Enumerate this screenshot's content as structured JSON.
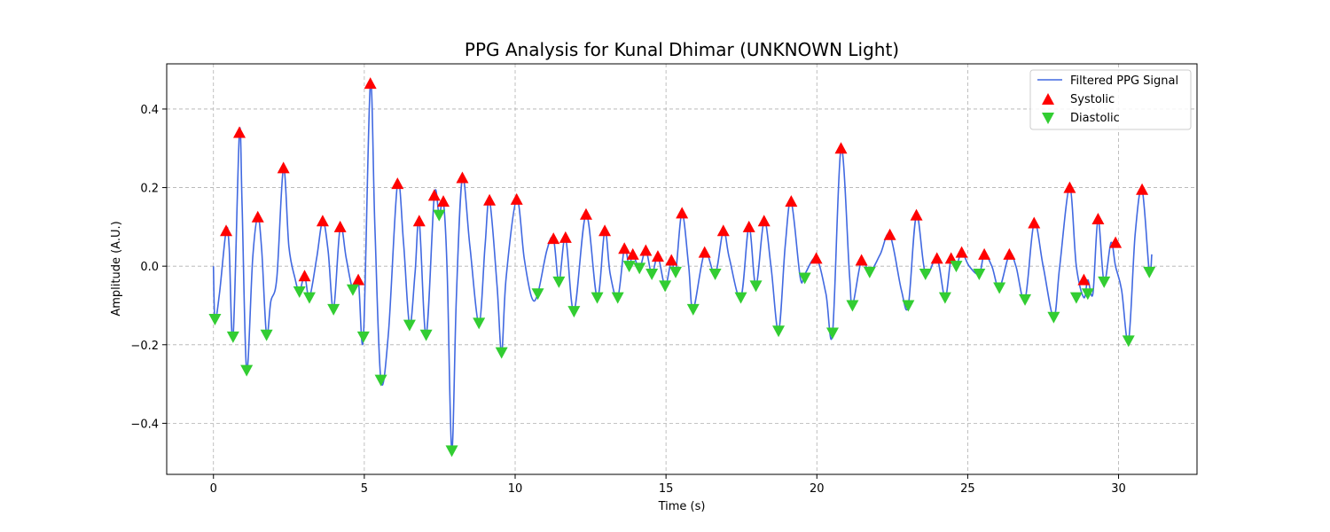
{
  "chart_data": {
    "type": "line",
    "title": "PPG Analysis for Kunal Dhimar (UNKNOWN Light)",
    "xlabel": "Time (s)",
    "ylabel": "Amplitude (A.U.)",
    "xlim": [
      -1.55,
      32.6
    ],
    "ylim": [
      -0.53,
      0.515
    ],
    "x_ticks": [
      0,
      5,
      10,
      15,
      20,
      25,
      30
    ],
    "y_ticks": [
      -0.4,
      -0.2,
      0.0,
      0.2,
      0.4
    ],
    "x_tick_labels": [
      "0",
      "5",
      "10",
      "15",
      "20",
      "25",
      "30"
    ],
    "y_tick_labels": [
      "−0.4",
      "−0.2",
      "0.0",
      "0.2",
      "0.4"
    ],
    "grid": true,
    "legend_placement": "top-right",
    "colors": {
      "signal": "#4169e1",
      "systolic": "#ff0000",
      "diastolic": "#32cd32"
    },
    "series": [
      {
        "name": "Filtered PPG Signal",
        "kind": "line",
        "x": [
          0,
          0.05,
          0.2,
          0.42,
          0.52,
          0.65,
          0.86,
          0.95,
          1.1,
          1.3,
          1.47,
          1.6,
          1.76,
          1.9,
          2.1,
          2.32,
          2.5,
          2.7,
          2.85,
          3.02,
          3.18,
          3.42,
          3.62,
          3.8,
          3.98,
          4.2,
          4.4,
          4.62,
          4.8,
          4.97,
          5.2,
          5.35,
          5.55,
          5.8,
          6.1,
          6.3,
          6.5,
          6.68,
          6.82,
          7.05,
          7.32,
          7.48,
          7.62,
          7.75,
          7.9,
          8.05,
          8.25,
          8.5,
          8.8,
          9.0,
          9.15,
          9.4,
          9.55,
          9.7,
          10.05,
          10.3,
          10.55,
          10.75,
          11.05,
          11.27,
          11.45,
          11.67,
          11.95,
          12.35,
          12.72,
          12.97,
          13.15,
          13.4,
          13.62,
          13.78,
          13.9,
          14.12,
          14.33,
          14.53,
          14.73,
          14.97,
          15.18,
          15.32,
          15.53,
          15.75,
          15.9,
          16.28,
          16.63,
          16.9,
          17.1,
          17.48,
          17.75,
          17.98,
          18.25,
          18.48,
          18.73,
          18.95,
          19.15,
          19.45,
          19.6,
          19.98,
          20.3,
          20.52,
          20.8,
          21.08,
          21.18,
          21.48,
          21.75,
          22.1,
          22.42,
          22.8,
          23.03,
          23.3,
          23.6,
          23.98,
          24.25,
          24.45,
          24.62,
          24.8,
          25.05,
          25.38,
          25.55,
          25.8,
          26.05,
          26.38,
          26.6,
          26.9,
          27.2,
          27.5,
          27.85,
          28.05,
          28.38,
          28.6,
          28.85,
          28.98,
          29.15,
          29.32,
          29.52,
          29.75,
          29.9,
          30.1,
          30.33,
          30.55,
          30.78,
          31.02,
          31.1
        ],
        "y": [
          0,
          -0.135,
          -0.07,
          0.09,
          0.05,
          -0.18,
          0.34,
          0.15,
          -0.265,
          0.02,
          0.125,
          0.04,
          -0.175,
          -0.09,
          -0.03,
          0.25,
          0.05,
          -0.03,
          -0.065,
          -0.025,
          -0.08,
          0.02,
          0.115,
          0.04,
          -0.11,
          0.1,
          0.02,
          -0.06,
          -0.035,
          -0.18,
          0.465,
          0.1,
          -0.29,
          -0.17,
          0.21,
          0.06,
          -0.15,
          -0.02,
          0.115,
          -0.175,
          0.18,
          0.13,
          0.165,
          -0.02,
          -0.47,
          -0.08,
          0.225,
          0.05,
          -0.145,
          0.05,
          0.168,
          -0.05,
          -0.22,
          -0.03,
          0.17,
          0.02,
          -0.08,
          -0.07,
          0.04,
          0.07,
          -0.04,
          0.073,
          -0.115,
          0.132,
          -0.08,
          0.09,
          -0.02,
          -0.08,
          0.045,
          0.0,
          0.03,
          -0.005,
          0.04,
          -0.02,
          0.025,
          -0.05,
          0.015,
          -0.015,
          0.135,
          0.0,
          -0.11,
          0.035,
          -0.02,
          0.09,
          0.02,
          -0.08,
          0.1,
          -0.05,
          0.115,
          0.0,
          -0.165,
          0.05,
          0.165,
          -0.03,
          -0.02,
          0.02,
          -0.07,
          -0.17,
          0.3,
          -0.02,
          -0.1,
          0.015,
          -0.015,
          0.03,
          0.08,
          -0.06,
          -0.1,
          0.13,
          -0.02,
          0.02,
          -0.08,
          0.02,
          0.0,
          0.035,
          0.0,
          -0.02,
          0.03,
          0.0,
          -0.055,
          0.03,
          0.0,
          -0.085,
          0.11,
          0.0,
          -0.13,
          0.0,
          0.2,
          0.0,
          -0.08,
          -0.035,
          -0.07,
          0.12,
          -0.04,
          0.06,
          0.0,
          -0.06,
          -0.19,
          0.08,
          0.195,
          -0.015,
          0.03
        ]
      },
      {
        "name": "Systolic",
        "kind": "peaks",
        "x": [
          0.42,
          0.86,
          1.47,
          2.32,
          3.02,
          3.62,
          4.2,
          4.8,
          5.2,
          6.1,
          6.82,
          7.32,
          7.62,
          8.25,
          9.15,
          10.05,
          11.27,
          11.67,
          12.35,
          12.97,
          13.62,
          13.9,
          14.33,
          14.73,
          15.18,
          15.53,
          16.28,
          16.9,
          17.75,
          18.25,
          19.15,
          19.98,
          20.8,
          21.48,
          22.42,
          23.3,
          23.98,
          24.45,
          24.8,
          25.55,
          26.38,
          27.2,
          28.38,
          28.85,
          29.32,
          29.9,
          30.78
        ],
        "y": [
          0.09,
          0.34,
          0.125,
          0.25,
          -0.025,
          0.115,
          0.1,
          -0.035,
          0.465,
          0.21,
          0.115,
          0.18,
          0.165,
          0.225,
          0.168,
          0.17,
          0.07,
          0.073,
          0.132,
          0.09,
          0.045,
          0.03,
          0.04,
          0.025,
          0.015,
          0.135,
          0.035,
          0.09,
          0.1,
          0.115,
          0.165,
          0.02,
          0.3,
          0.015,
          0.08,
          0.13,
          0.02,
          0.02,
          0.035,
          0.03,
          0.03,
          0.11,
          0.2,
          -0.035,
          0.12,
          0.06,
          0.195
        ]
      },
      {
        "name": "Diastolic",
        "kind": "troughs",
        "x": [
          0.05,
          0.65,
          1.1,
          1.76,
          2.85,
          3.18,
          3.98,
          4.62,
          4.97,
          5.55,
          6.5,
          7.05,
          7.48,
          7.9,
          8.8,
          9.55,
          10.75,
          11.45,
          11.95,
          12.72,
          13.4,
          13.78,
          14.12,
          14.53,
          14.97,
          15.32,
          15.9,
          16.63,
          17.48,
          17.98,
          18.73,
          19.6,
          20.52,
          21.18,
          21.75,
          23.03,
          23.6,
          24.25,
          24.62,
          25.38,
          26.05,
          26.9,
          27.85,
          28.6,
          28.98,
          29.52,
          30.33,
          31.02
        ],
        "y": [
          -0.135,
          -0.18,
          -0.265,
          -0.175,
          -0.065,
          -0.08,
          -0.11,
          -0.06,
          -0.18,
          -0.29,
          -0.15,
          -0.175,
          0.13,
          -0.47,
          -0.145,
          -0.22,
          -0.07,
          -0.04,
          -0.115,
          -0.08,
          -0.08,
          0.0,
          -0.005,
          -0.02,
          -0.05,
          -0.015,
          -0.11,
          -0.02,
          -0.08,
          -0.05,
          -0.165,
          -0.03,
          -0.17,
          -0.1,
          -0.015,
          -0.1,
          -0.02,
          -0.08,
          0.0,
          -0.02,
          -0.055,
          -0.085,
          -0.13,
          -0.08,
          -0.07,
          -0.04,
          -0.19,
          -0.015
        ]
      }
    ]
  }
}
